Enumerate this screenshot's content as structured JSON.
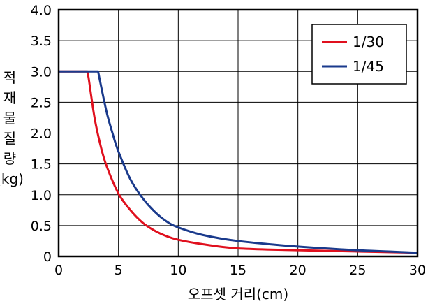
{
  "chart_data": {
    "type": "line",
    "title": "",
    "xlabel": "오프셋 거리(cm)",
    "ylabel_chars": [
      "적",
      "재",
      "물",
      "질",
      "량",
      "(kg)"
    ],
    "xlim": [
      0,
      30
    ],
    "ylim": [
      0,
      4.0
    ],
    "x_ticks": [
      0,
      5,
      10,
      15,
      20,
      25,
      30
    ],
    "x_tick_labels": [
      "0",
      "5",
      "10",
      "15",
      "20",
      "25",
      "30"
    ],
    "y_ticks": [
      0,
      0.5,
      1.0,
      1.5,
      2.0,
      2.5,
      3.0,
      3.5,
      4.0
    ],
    "y_tick_labels": [
      "0",
      "0.5",
      "1.0",
      "1.5",
      "2.0",
      "2.5",
      "3.0",
      "3.5",
      "4.0"
    ],
    "grid": true,
    "legend_position": "top-right",
    "series": [
      {
        "name": "1/30",
        "color": "#e0101e",
        "points": [
          [
            0,
            3.0
          ],
          [
            2.4,
            3.0
          ],
          [
            2.5,
            2.9
          ],
          [
            3.0,
            2.25
          ],
          [
            3.5,
            1.8
          ],
          [
            4.0,
            1.47
          ],
          [
            5.0,
            1.02
          ],
          [
            6.0,
            0.75
          ],
          [
            7.0,
            0.55
          ],
          [
            8.0,
            0.42
          ],
          [
            9.0,
            0.33
          ],
          [
            10.0,
            0.27
          ],
          [
            12.0,
            0.2
          ],
          [
            15.0,
            0.13
          ],
          [
            20.0,
            0.1
          ],
          [
            25.0,
            0.08
          ],
          [
            30.0,
            0.06
          ]
        ]
      },
      {
        "name": "1/45",
        "color": "#1a3a8c",
        "points": [
          [
            0,
            3.0
          ],
          [
            3.3,
            3.0
          ],
          [
            3.4,
            2.9
          ],
          [
            4.0,
            2.35
          ],
          [
            4.5,
            2.0
          ],
          [
            5.0,
            1.7
          ],
          [
            6.0,
            1.25
          ],
          [
            7.0,
            0.95
          ],
          [
            8.0,
            0.73
          ],
          [
            9.0,
            0.57
          ],
          [
            10.0,
            0.47
          ],
          [
            12.0,
            0.35
          ],
          [
            15.0,
            0.25
          ],
          [
            20.0,
            0.16
          ],
          [
            25.0,
            0.1
          ],
          [
            30.0,
            0.06
          ]
        ]
      }
    ]
  }
}
